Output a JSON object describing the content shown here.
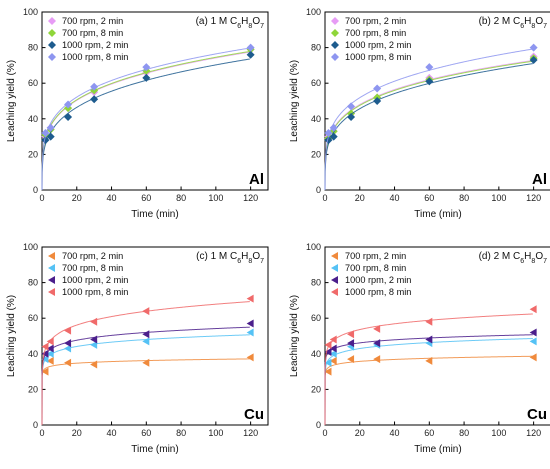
{
  "chart_data": [
    {
      "type": "scatter",
      "panel_label": "(a) 1 M C6H8O7",
      "panel_label_parts": {
        "text": "(a) 1 M C",
        "s1": "6",
        "m1": "H",
        "s2": "8",
        "m2": "O",
        "s3": "7"
      },
      "element": "Al",
      "xlabel": "Time (min)",
      "ylabel": "Leaching yield (%)",
      "xlim": [
        0,
        130
      ],
      "ylim": [
        0,
        100
      ],
      "xticks": [
        0,
        20,
        40,
        60,
        80,
        100,
        120
      ],
      "yticks": [
        0,
        20,
        40,
        60,
        80,
        100
      ],
      "legend_position": "top-left",
      "marker": "diamond",
      "series": [
        {
          "name": "700 rpm, 2 min",
          "color": "#e79cf5",
          "x": [
            2,
            5,
            15,
            30,
            60,
            120
          ],
          "y": [
            30,
            35,
            46,
            55,
            66,
            79
          ]
        },
        {
          "name": "700 rpm, 8 min",
          "color": "#8fd63a",
          "x": [
            2,
            5,
            15,
            30,
            60,
            120
          ],
          "y": [
            31,
            34,
            46,
            56,
            67,
            79
          ]
        },
        {
          "name": "1000 rpm, 2 min",
          "color": "#1e5c8e",
          "x": [
            2,
            5,
            15,
            30,
            60,
            120
          ],
          "y": [
            28,
            30,
            41,
            51,
            63,
            76
          ]
        },
        {
          "name": "1000 rpm, 8 min",
          "color": "#8e96f0",
          "x": [
            2,
            5,
            15,
            30,
            60,
            120
          ],
          "y": [
            32,
            35,
            48,
            58,
            69,
            80
          ]
        }
      ]
    },
    {
      "type": "scatter",
      "panel_label": "(b) 2 M C6H8O7",
      "panel_label_parts": {
        "text": "(b) 2 M C",
        "s1": "6",
        "m1": "H",
        "s2": "8",
        "m2": "O",
        "s3": "7"
      },
      "element": "Al",
      "xlabel": "Time (min)",
      "ylabel": "Leaching yield (%)",
      "xlim": [
        0,
        130
      ],
      "ylim": [
        0,
        100
      ],
      "xticks": [
        0,
        20,
        40,
        60,
        80,
        100,
        120
      ],
      "yticks": [
        0,
        20,
        40,
        60,
        80,
        100
      ],
      "legend_position": "top-left",
      "marker": "diamond",
      "series": [
        {
          "name": "700 rpm, 2 min",
          "color": "#e79cf5",
          "x": [
            2,
            5,
            15,
            30,
            60,
            120
          ],
          "y": [
            30,
            33,
            43,
            52,
            63,
            75
          ]
        },
        {
          "name": "700 rpm, 8 min",
          "color": "#8fd63a",
          "x": [
            2,
            5,
            15,
            30,
            60,
            120
          ],
          "y": [
            29,
            33,
            43,
            52,
            62,
            74
          ]
        },
        {
          "name": "1000 rpm, 2 min",
          "color": "#1e5c8e",
          "x": [
            2,
            5,
            15,
            30,
            60,
            120
          ],
          "y": [
            28,
            30,
            41,
            50,
            61,
            73
          ]
        },
        {
          "name": "1000 rpm, 8 min",
          "color": "#8e96f0",
          "x": [
            2,
            5,
            15,
            30,
            60,
            120
          ],
          "y": [
            32,
            35,
            47,
            57,
            69,
            80
          ]
        }
      ]
    },
    {
      "type": "scatter",
      "panel_label": "(c) 1 M C6H8O7",
      "panel_label_parts": {
        "text": "(c) 1 M C",
        "s1": "6",
        "m1": "H",
        "s2": "8",
        "m2": "O",
        "s3": "7"
      },
      "element": "Cu",
      "xlabel": "Time (min)",
      "ylabel": "Leaching yield (%)",
      "xlim": [
        0,
        130
      ],
      "ylim": [
        0,
        100
      ],
      "xticks": [
        0,
        20,
        40,
        60,
        80,
        100,
        120
      ],
      "yticks": [
        0,
        20,
        40,
        60,
        80,
        100
      ],
      "legend_position": "top-left",
      "marker": "triangle-left",
      "series": [
        {
          "name": "700 rpm, 2 min",
          "color": "#f08a3c",
          "x": [
            2,
            5,
            15,
            30,
            60,
            120
          ],
          "y": [
            30,
            36,
            35,
            34,
            35,
            38
          ]
        },
        {
          "name": "700 rpm, 8 min",
          "color": "#55c2f5",
          "x": [
            2,
            5,
            15,
            30,
            60,
            120
          ],
          "y": [
            37,
            40,
            43,
            45,
            47,
            52
          ]
        },
        {
          "name": "1000 rpm, 2 min",
          "color": "#4b1f8c",
          "x": [
            2,
            5,
            15,
            30,
            60,
            120
          ],
          "y": [
            40,
            43,
            46,
            48,
            51,
            57
          ]
        },
        {
          "name": "1000 rpm, 8 min",
          "color": "#f06a6a",
          "x": [
            2,
            5,
            15,
            30,
            60,
            120
          ],
          "y": [
            44,
            47,
            53,
            58,
            64,
            71
          ]
        }
      ]
    },
    {
      "type": "scatter",
      "panel_label": "(d) 2 M C6H8O7",
      "panel_label_parts": {
        "text": "(d) 2 M C",
        "s1": "6",
        "m1": "H",
        "s2": "8",
        "m2": "O",
        "s3": "7"
      },
      "element": "Cu",
      "xlabel": "Time (min)",
      "ylabel": "Leaching yield (%)",
      "xlim": [
        0,
        130
      ],
      "ylim": [
        0,
        100
      ],
      "xticks": [
        0,
        20,
        40,
        60,
        80,
        100,
        120
      ],
      "yticks": [
        0,
        20,
        40,
        60,
        80,
        100
      ],
      "legend_position": "top-left",
      "marker": "triangle-left",
      "series": [
        {
          "name": "700 rpm, 2 min",
          "color": "#f08a3c",
          "x": [
            2,
            5,
            15,
            30,
            60,
            120
          ],
          "y": [
            30,
            36,
            37,
            37,
            36,
            38
          ]
        },
        {
          "name": "700 rpm, 8 min",
          "color": "#55c2f5",
          "x": [
            2,
            5,
            15,
            30,
            60,
            120
          ],
          "y": [
            35,
            40,
            44,
            45,
            46,
            47
          ]
        },
        {
          "name": "1000 rpm, 2 min",
          "color": "#4b1f8c",
          "x": [
            2,
            5,
            15,
            30,
            60,
            120
          ],
          "y": [
            41,
            43,
            46,
            46,
            48,
            52
          ]
        },
        {
          "name": "1000 rpm, 8 min",
          "color": "#f06a6a",
          "x": [
            2,
            5,
            15,
            30,
            60,
            120
          ],
          "y": [
            45,
            48,
            51,
            54,
            58,
            65
          ]
        }
      ]
    }
  ]
}
